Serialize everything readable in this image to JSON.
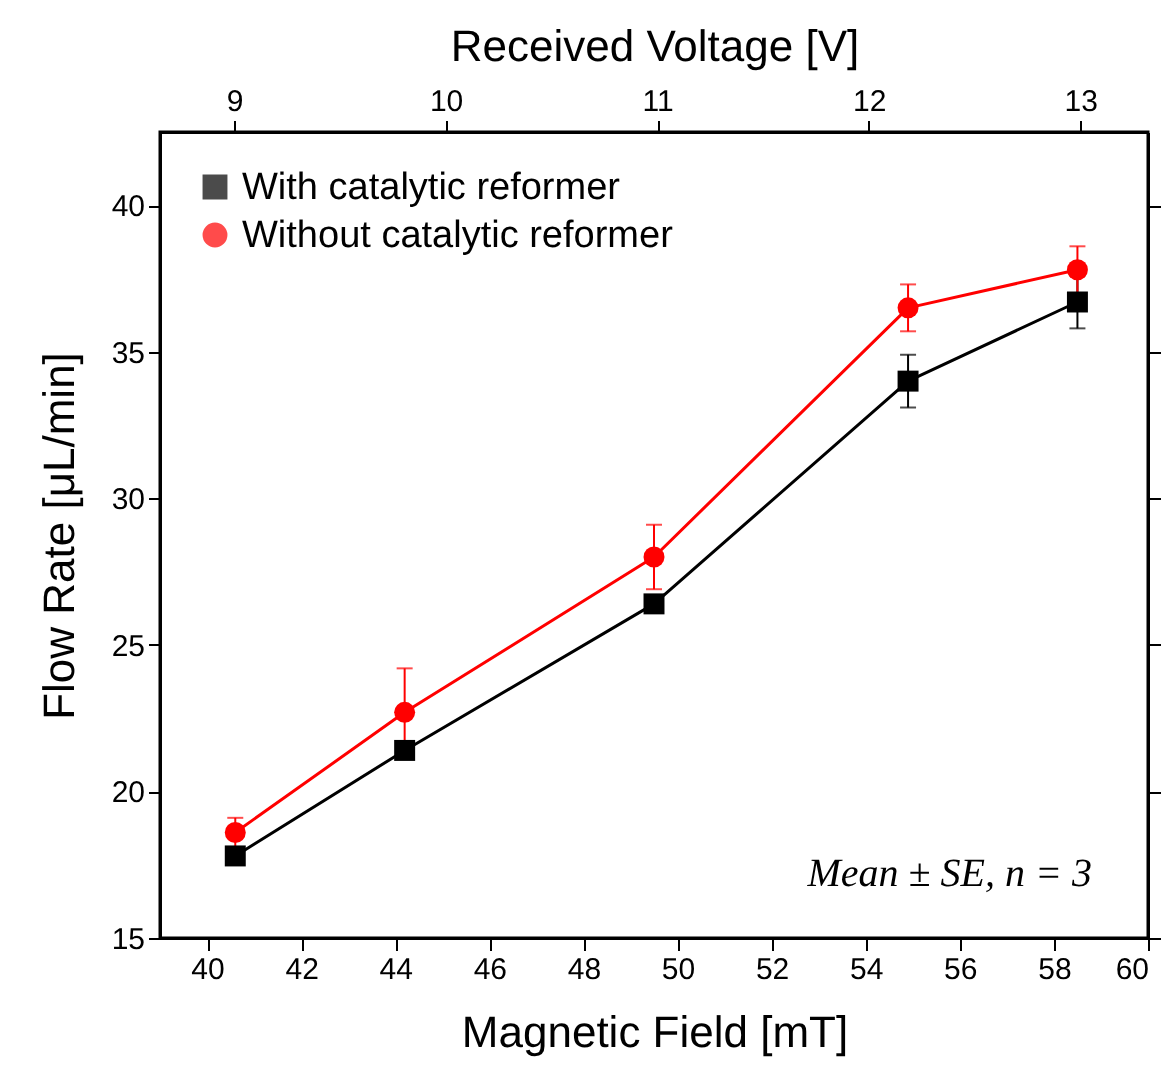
{
  "chart_data": {
    "type": "line",
    "xlabel": "Magnetic Field [mT]",
    "ylabel": "Flow Rate [μL/min]",
    "x2label": "Received Voltage [V]",
    "x": [
      40.6,
      44.2,
      49.5,
      54.9,
      58.5
    ],
    "series": [
      {
        "name": "With catalytic reformer",
        "color": "#000000",
        "marker": "square",
        "values": [
          17.8,
          21.4,
          26.4,
          34.0,
          36.7
        ],
        "errors": [
          0.2,
          0.2,
          0.2,
          0.9,
          0.9
        ]
      },
      {
        "name": "Without catalytic reformer",
        "color": "#ff0000",
        "marker": "circle",
        "values": [
          18.6,
          22.7,
          28.0,
          36.5,
          37.8
        ],
        "errors": [
          0.5,
          1.5,
          1.1,
          0.8,
          0.8
        ]
      }
    ],
    "xlim": [
      39,
      60
    ],
    "xticks": [
      40,
      42,
      44,
      46,
      48,
      50,
      52,
      54,
      56,
      58,
      60
    ],
    "ylim": [
      15,
      42.5
    ],
    "yticks": [
      15,
      20,
      25,
      30,
      35,
      40
    ],
    "x2lim": [
      8.65,
      13.32
    ],
    "x2ticks": [
      9,
      10,
      11,
      12,
      13
    ],
    "annotations": [
      "Mean ± SE, n = 3"
    ],
    "legend": "top left",
    "grid": false,
    "line_style": "solid"
  }
}
